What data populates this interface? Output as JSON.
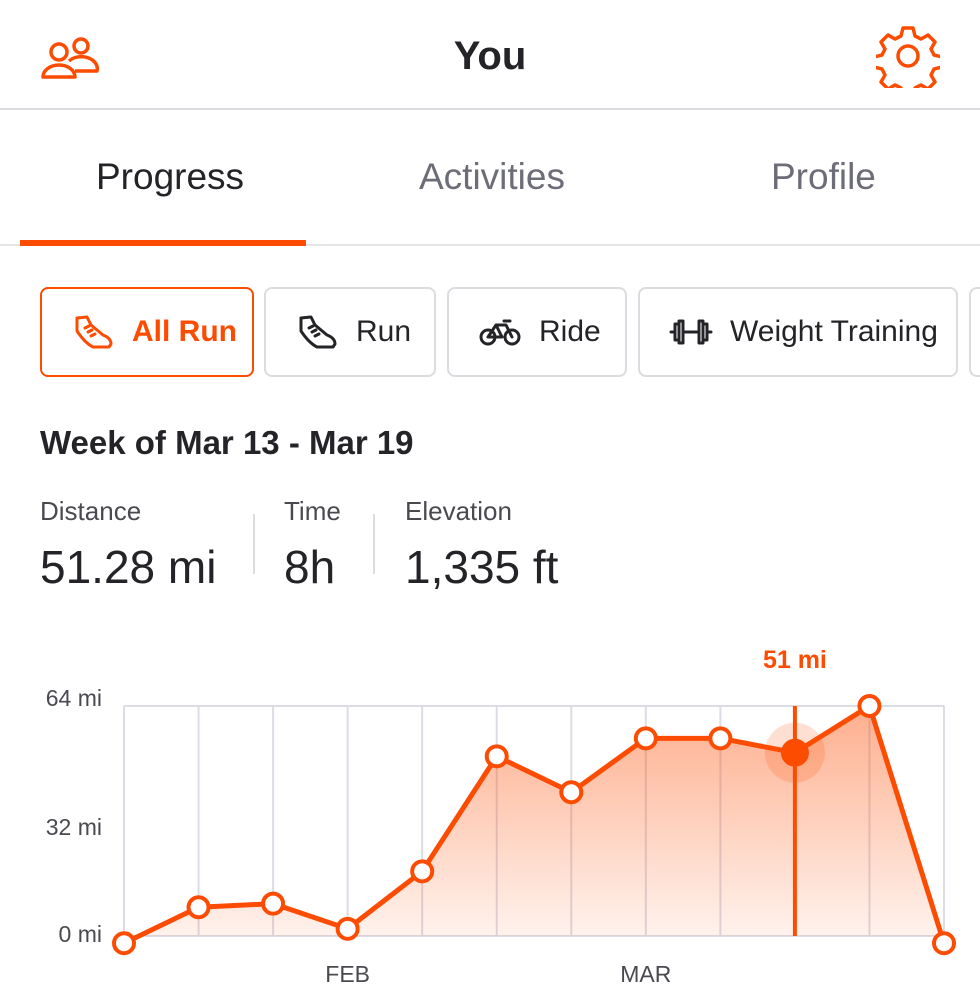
{
  "header": {
    "title": "You",
    "left_icon": "friends-icon",
    "right_icon": "gear-icon",
    "accent_color": "#fc4c02"
  },
  "tabs": [
    {
      "label": "Progress",
      "active": true
    },
    {
      "label": "Activities",
      "active": false
    },
    {
      "label": "Profile",
      "active": false
    }
  ],
  "filters": [
    {
      "label": "All Run",
      "icon": "shoe-icon",
      "active": true
    },
    {
      "label": "Run",
      "icon": "shoe-icon",
      "active": false
    },
    {
      "label": "Ride",
      "icon": "bike-icon",
      "active": false
    },
    {
      "label": "Weight Training",
      "icon": "dumbbell-icon",
      "active": false
    }
  ],
  "week": {
    "title": "Week of Mar 13 - Mar 19",
    "stats": [
      {
        "label": "Distance",
        "value": "51.28 mi"
      },
      {
        "label": "Time",
        "value": "8h"
      },
      {
        "label": "Elevation",
        "value": "1,335 ft"
      }
    ]
  },
  "chart_data": {
    "type": "area",
    "x": [
      1,
      2,
      3,
      4,
      5,
      6,
      7,
      8,
      9,
      10,
      11,
      12
    ],
    "values": [
      -2,
      8,
      9,
      2,
      18,
      50,
      40,
      55,
      55,
      51,
      64,
      -2
    ],
    "selected_index": 9,
    "selected_label": "51 mi",
    "ylim": [
      0,
      64
    ],
    "yticks": [
      "64 mi",
      "32 mi",
      "0 mi"
    ],
    "ytick_values": [
      64,
      32,
      0
    ],
    "xticks": [
      {
        "label": "FEB",
        "at_index": 3
      },
      {
        "label": "MAR",
        "at_index": 7
      }
    ],
    "grid": true,
    "line_color": "#fc4c02"
  }
}
